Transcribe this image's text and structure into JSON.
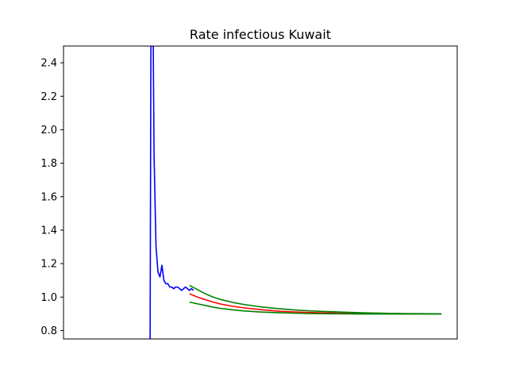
{
  "chart_data": {
    "type": "line",
    "title": "Rate infectious Kuwait",
    "xlabel": "",
    "ylabel": "",
    "xlim": [
      0,
      100
    ],
    "ylim": [
      0.75,
      2.5
    ],
    "x_ticks_visible": false,
    "y_ticks": [
      0.8,
      1.0,
      1.2,
      1.4,
      1.6,
      1.8,
      2.0,
      2.2,
      2.4
    ],
    "y_tick_labels": [
      "0.8",
      "1.0",
      "1.2",
      "1.4",
      "1.6",
      "1.8",
      "2.0",
      "2.2",
      "2.4"
    ],
    "grid": false,
    "legend": false,
    "colors": {
      "observed": "#0000ff",
      "forecast": "#ff0000",
      "bounds": "#008000"
    },
    "series": [
      {
        "role": "observed",
        "x": [
          22.0,
          22.2,
          22.8,
          23.0,
          23.5,
          24.0,
          24.5,
          25.0,
          25.5,
          26.0,
          26.5,
          27.0,
          27.5,
          28.0,
          28.5,
          29.0,
          29.5,
          30.0,
          30.5,
          31.0,
          31.5,
          32.0,
          32.5,
          33.0
        ],
        "y": [
          0.75,
          2.5,
          2.5,
          1.85,
          1.3,
          1.15,
          1.12,
          1.19,
          1.1,
          1.08,
          1.08,
          1.06,
          1.06,
          1.05,
          1.06,
          1.06,
          1.05,
          1.04,
          1.05,
          1.06,
          1.05,
          1.04,
          1.05,
          1.04
        ]
      },
      {
        "role": "forecast",
        "x": [
          32.0,
          34.0,
          36.0,
          38.0,
          40.0,
          43.0,
          46.0,
          50.0,
          55.0,
          60.0,
          65.0,
          70.0,
          75.0,
          80.0,
          85.0,
          90.0,
          96.0
        ],
        "y": [
          1.02,
          1.0,
          0.985,
          0.97,
          0.958,
          0.945,
          0.935,
          0.925,
          0.915,
          0.91,
          0.906,
          0.904,
          0.902,
          0.901,
          0.9,
          0.9,
          0.9
        ]
      },
      {
        "role": "upper",
        "x": [
          32.0,
          34.0,
          36.0,
          38.0,
          40.0,
          43.0,
          46.0,
          50.0,
          55.0,
          60.0,
          65.0,
          70.0,
          75.0,
          80.0,
          85.0,
          90.0,
          96.0
        ],
        "y": [
          1.07,
          1.045,
          1.02,
          1.0,
          0.985,
          0.968,
          0.955,
          0.942,
          0.93,
          0.921,
          0.915,
          0.911,
          0.907,
          0.904,
          0.902,
          0.901,
          0.9
        ]
      },
      {
        "role": "lower",
        "x": [
          32.0,
          34.0,
          36.0,
          38.0,
          40.0,
          43.0,
          46.0,
          50.0,
          55.0,
          60.0,
          65.0,
          70.0,
          75.0,
          80.0,
          85.0,
          90.0,
          96.0
        ],
        "y": [
          0.97,
          0.96,
          0.95,
          0.94,
          0.932,
          0.924,
          0.917,
          0.911,
          0.906,
          0.903,
          0.901,
          0.9,
          0.899,
          0.899,
          0.899,
          0.899,
          0.899
        ]
      }
    ]
  }
}
